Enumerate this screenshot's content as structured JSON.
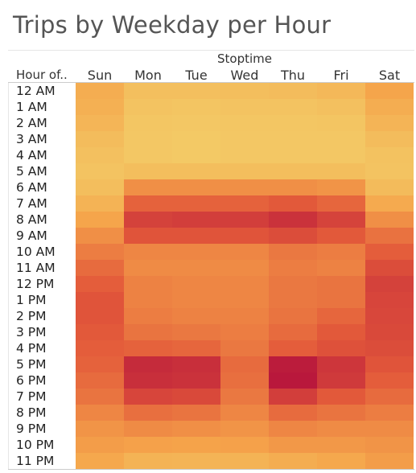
{
  "chart_data": {
    "type": "heatmap",
    "title": "Trips by Weekday per Hour",
    "column_axis_title": "Stoptime",
    "row_axis_title": "Hour of..",
    "columns": [
      "Sun",
      "Mon",
      "Tue",
      "Wed",
      "Thu",
      "Fri",
      "Sat"
    ],
    "rows": [
      "12 AM",
      "1 AM",
      "2 AM",
      "3 AM",
      "4 AM",
      "5 AM",
      "6 AM",
      "7 AM",
      "8 AM",
      "9 AM",
      "10 AM",
      "11 AM",
      "12 PM",
      "1 PM",
      "2 PM",
      "3 PM",
      "4 PM",
      "5 PM",
      "6 PM",
      "7 PM",
      "8 PM",
      "9 PM",
      "10 PM",
      "11 PM"
    ],
    "values": [
      [
        0.26,
        0.13,
        0.13,
        0.14,
        0.15,
        0.18,
        0.32
      ],
      [
        0.24,
        0.1,
        0.09,
        0.1,
        0.1,
        0.12,
        0.26
      ],
      [
        0.2,
        0.08,
        0.07,
        0.08,
        0.08,
        0.09,
        0.21
      ],
      [
        0.15,
        0.07,
        0.06,
        0.07,
        0.07,
        0.07,
        0.15
      ],
      [
        0.12,
        0.07,
        0.06,
        0.07,
        0.07,
        0.07,
        0.11
      ],
      [
        0.1,
        0.14,
        0.14,
        0.14,
        0.14,
        0.14,
        0.1
      ],
      [
        0.14,
        0.42,
        0.42,
        0.42,
        0.42,
        0.4,
        0.16
      ],
      [
        0.22,
        0.62,
        0.62,
        0.62,
        0.66,
        0.6,
        0.28
      ],
      [
        0.32,
        0.78,
        0.8,
        0.8,
        0.86,
        0.77,
        0.42
      ],
      [
        0.42,
        0.68,
        0.68,
        0.68,
        0.72,
        0.66,
        0.55
      ],
      [
        0.5,
        0.46,
        0.46,
        0.46,
        0.52,
        0.5,
        0.64
      ],
      [
        0.58,
        0.44,
        0.44,
        0.44,
        0.5,
        0.48,
        0.72
      ],
      [
        0.64,
        0.48,
        0.46,
        0.46,
        0.52,
        0.54,
        0.78
      ],
      [
        0.68,
        0.48,
        0.46,
        0.46,
        0.52,
        0.54,
        0.76
      ],
      [
        0.68,
        0.5,
        0.48,
        0.48,
        0.54,
        0.6,
        0.75
      ],
      [
        0.66,
        0.54,
        0.52,
        0.5,
        0.58,
        0.66,
        0.74
      ],
      [
        0.64,
        0.62,
        0.6,
        0.52,
        0.64,
        0.7,
        0.72
      ],
      [
        0.62,
        0.9,
        0.88,
        0.58,
        0.98,
        0.84,
        0.68
      ],
      [
        0.58,
        0.88,
        0.86,
        0.56,
        1.0,
        0.82,
        0.64
      ],
      [
        0.54,
        0.76,
        0.74,
        0.52,
        0.8,
        0.66,
        0.58
      ],
      [
        0.46,
        0.56,
        0.54,
        0.46,
        0.58,
        0.54,
        0.5
      ],
      [
        0.4,
        0.44,
        0.42,
        0.4,
        0.46,
        0.44,
        0.44
      ],
      [
        0.36,
        0.34,
        0.33,
        0.34,
        0.38,
        0.38,
        0.4
      ],
      [
        0.3,
        0.22,
        0.21,
        0.22,
        0.26,
        0.3,
        0.36
      ]
    ],
    "value_scale": "relative trip volume, 0 = fewest, 1 = most",
    "color_scale": [
      "#f2d16b",
      "#f5a34a",
      "#e2573a",
      "#b9183c"
    ],
    "legend": "none",
    "grid": false
  }
}
